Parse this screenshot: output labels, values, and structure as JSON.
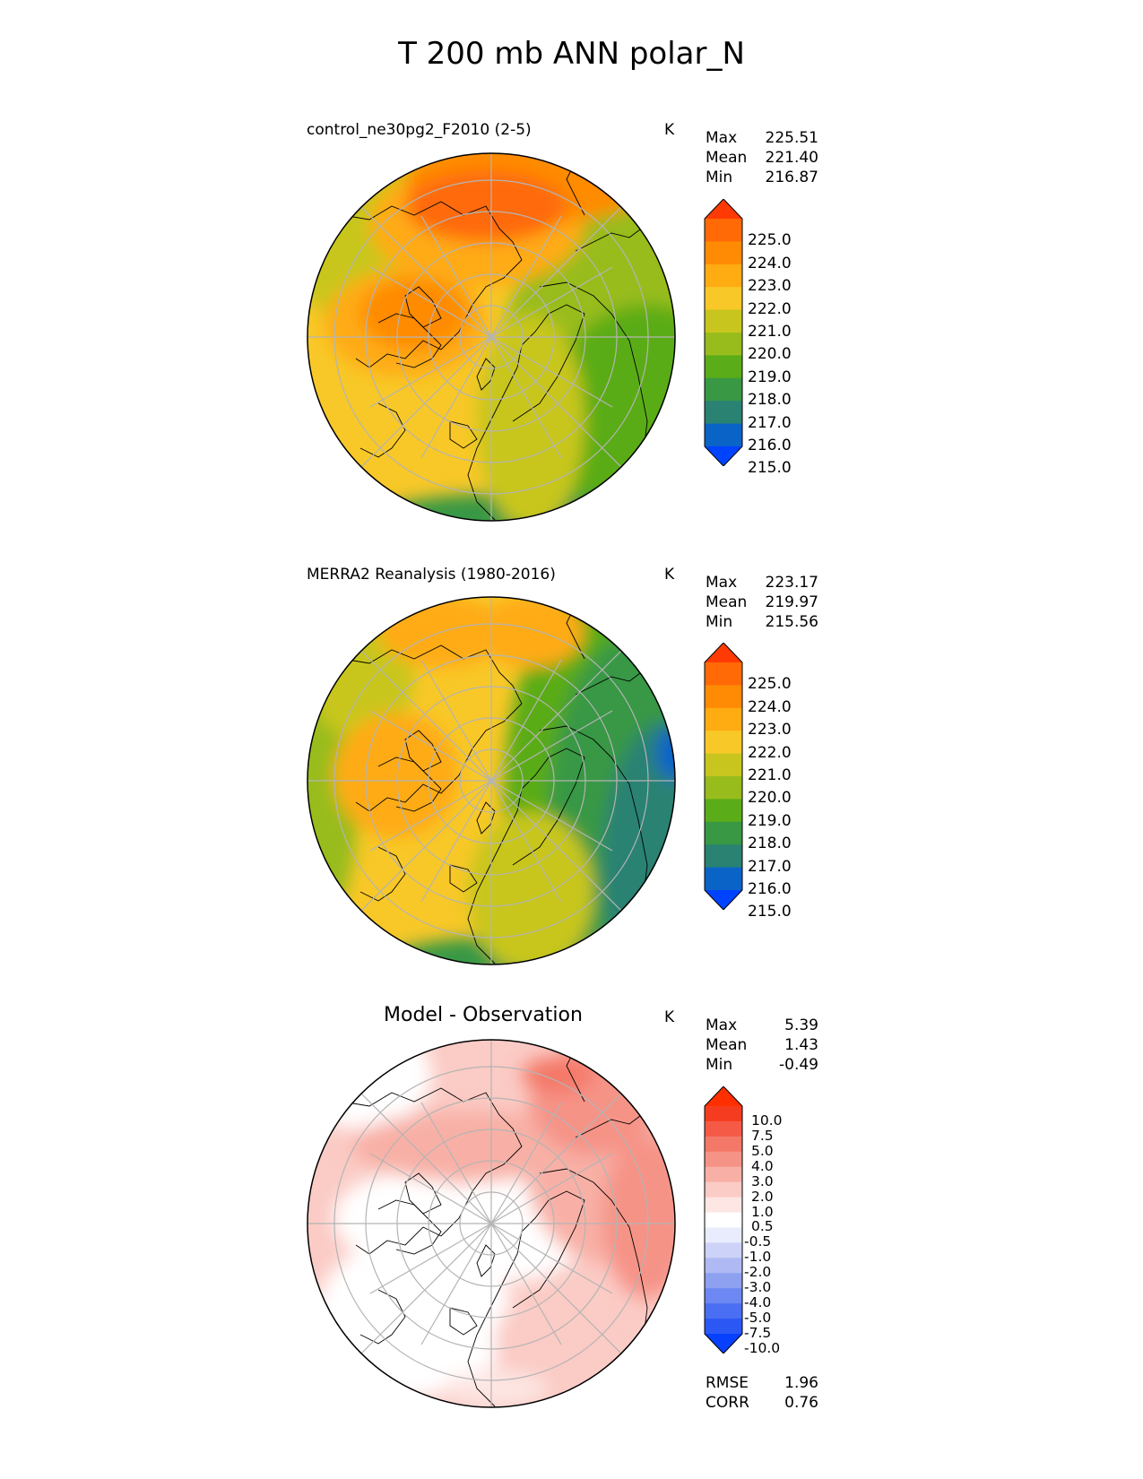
{
  "title": "T 200 mb ANN polar_N",
  "colors": {
    "seq": [
      "#0043ff",
      "#0a64c8",
      "#2a8273",
      "#389844",
      "#5aac18",
      "#98bc1c",
      "#c8c61e",
      "#f8c828",
      "#ffab12",
      "#ff8b05",
      "#ff6a07",
      "#ff3a05"
    ],
    "diff": [
      "#0740ff",
      "#2b57f5",
      "#4b6ff2",
      "#6d88f2",
      "#8ea1f0",
      "#afbaf4",
      "#cdd3f8",
      "#e8ecfc",
      "#ffffff",
      "#fde6e3",
      "#fbcbc5",
      "#f8b0a6",
      "#f69387",
      "#f47868",
      "#f55a47",
      "#f63c20",
      "#ff2f00"
    ],
    "land_outline": "#000000",
    "gridline": "#b4b4b4"
  },
  "chart_data": [
    {
      "type": "heatmap",
      "projection": "north-polar-stereographic",
      "title": "control_ne30pg2_F2010 (2-5)",
      "units": "K",
      "stats": [
        {
          "label": "Max",
          "value": "225.51"
        },
        {
          "label": "Mean",
          "value": "221.40"
        },
        {
          "label": "Min",
          "value": "216.87"
        }
      ],
      "colorbar": {
        "levels": [
          215.0,
          216.0,
          217.0,
          218.0,
          219.0,
          220.0,
          221.0,
          222.0,
          223.0,
          224.0,
          225.0
        ],
        "tick_labels": [
          "225.0",
          "224.0",
          "223.0",
          "222.0",
          "221.0",
          "220.0",
          "219.0",
          "218.0",
          "217.0",
          "216.0",
          "215.0"
        ],
        "extend": "both",
        "palette": "seq"
      }
    },
    {
      "type": "heatmap",
      "projection": "north-polar-stereographic",
      "title": "MERRA2 Reanalysis (1980-2016)",
      "units": "K",
      "stats": [
        {
          "label": "Max",
          "value": "223.17"
        },
        {
          "label": "Mean",
          "value": "219.97"
        },
        {
          "label": "Min",
          "value": "215.56"
        }
      ],
      "colorbar": {
        "levels": [
          215.0,
          216.0,
          217.0,
          218.0,
          219.0,
          220.0,
          221.0,
          222.0,
          223.0,
          224.0,
          225.0
        ],
        "tick_labels": [
          "225.0",
          "224.0",
          "223.0",
          "222.0",
          "221.0",
          "220.0",
          "219.0",
          "218.0",
          "217.0",
          "216.0",
          "215.0"
        ],
        "extend": "both",
        "palette": "seq"
      }
    },
    {
      "type": "heatmap",
      "projection": "north-polar-stereographic",
      "title": "Model - Observation",
      "units": "K",
      "stats": [
        {
          "label": "Max",
          "value": "5.39"
        },
        {
          "label": "Mean",
          "value": "1.43"
        },
        {
          "label": "Min",
          "value": "-0.49"
        }
      ],
      "colorbar": {
        "levels": [
          -10.0,
          -7.5,
          -5.0,
          -4.0,
          -3.0,
          -2.0,
          -1.0,
          -0.5,
          0.5,
          1.0,
          2.0,
          3.0,
          4.0,
          5.0,
          7.5,
          10.0
        ],
        "tick_labels": [
          "10.0",
          "7.5",
          "5.0",
          "4.0",
          "3.0",
          "2.0",
          "1.0",
          "0.5",
          "-0.5",
          "-1.0",
          "-2.0",
          "-3.0",
          "-4.0",
          "-5.0",
          "-7.5",
          "-10.0"
        ],
        "extend": "both",
        "palette": "diff"
      },
      "footer": [
        {
          "label": "RMSE",
          "value": "1.96"
        },
        {
          "label": "CORR",
          "value": "0.76"
        }
      ]
    }
  ]
}
